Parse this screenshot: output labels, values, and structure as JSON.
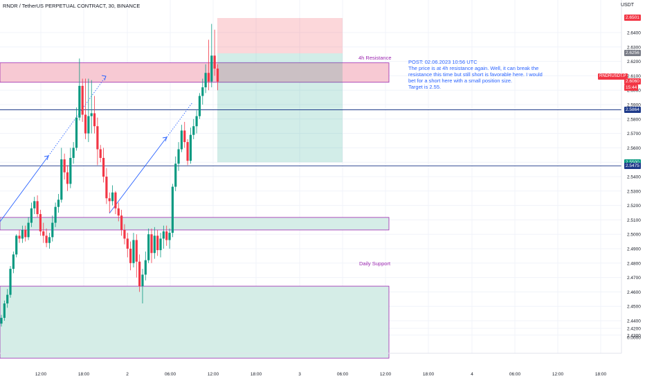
{
  "header": {
    "title": "RNDR / TetherUS PERPETUAL CONTRACT, 30, BINANCE",
    "currency": "USDT"
  },
  "note": {
    "text": "POST: 02.06.2023 10:56 UTC\nThe price is at 4h resistance again. Well, it can break the resistance this time but still short is favorable here. I would bet for a short here with a small position size.\nTarget is  2.55."
  },
  "labels": {
    "resistance": "4h Resistance",
    "support": "Daily Support",
    "symbol_tag": "RNDRUSDT.P"
  },
  "colors": {
    "up": "#089981",
    "down": "#f23645",
    "zone_border": "#9c27b0",
    "resistance_fill": "#f7c9d3",
    "zone_fill": "#d5ede7",
    "blue": "#2962ff"
  },
  "chart_data": {
    "type": "candlestick",
    "symbol": "RNDR / TetherUS PERPETUAL CONTRACT",
    "interval": "30",
    "exchange": "BINANCE",
    "y_ticks": [
      "2.6400",
      "2.6300",
      "2.6200",
      "2.6100",
      "2.6000",
      "2.5900",
      "2.5800",
      "2.5700",
      "2.5600",
      "2.5500",
      "2.5400",
      "2.5300",
      "2.5200",
      "2.5100",
      "2.5000",
      "2.4900",
      "2.4800",
      "2.4700",
      "2.4600",
      "2.4500",
      "2.4400",
      "2.4300",
      "2.4200",
      "0.0000"
    ],
    "x_ticks": [
      "12:00",
      "18:00",
      "2",
      "06:00",
      "12:00",
      "18:00",
      "3",
      "06:00",
      "12:00",
      "18:00",
      "4",
      "06:00",
      "12:00",
      "18:00"
    ],
    "price_tags": [
      {
        "label": "2.6501",
        "value": 2.6501,
        "color": "#f23645"
      },
      {
        "label": "2.6256",
        "value": 2.6256,
        "color": "#787b86"
      },
      {
        "label": "2.6060",
        "value": 2.606,
        "color": "#f23645"
      },
      {
        "label": "15:44",
        "value": 2.602,
        "color": "#f23645"
      },
      {
        "label": "2.5864",
        "value": 2.5864,
        "color": "#1e3a8a"
      },
      {
        "label": "2.5500",
        "value": 2.55,
        "color": "#089981"
      },
      {
        "label": "2.5475",
        "value": 2.5475,
        "color": "#1e3a8a"
      }
    ],
    "horizontal_lines": [
      2.5864,
      2.5475
    ],
    "zones": [
      {
        "name": "4h Resistance",
        "top": 2.619,
        "bottom": 2.6055
      },
      {
        "name": "range",
        "top": 2.5117,
        "bottom": 2.503
      },
      {
        "name": "Daily Support",
        "top": 2.464,
        "bottom": 2.414
      }
    ],
    "short_position": {
      "entry": 2.6256,
      "stop": 2.6501,
      "target": 2.55
    },
    "candles": [
      [
        2.438,
        2.442,
        2.436,
        2.444
      ],
      [
        2.442,
        2.452,
        2.44,
        2.454
      ],
      [
        2.452,
        2.458,
        2.449,
        2.462
      ],
      [
        2.458,
        2.476,
        2.456,
        2.478
      ],
      [
        2.476,
        2.486,
        2.473,
        2.488
      ],
      [
        2.486,
        2.499,
        2.484,
        2.5
      ],
      [
        2.499,
        2.497,
        2.494,
        2.503
      ],
      [
        2.497,
        2.503,
        2.494,
        2.506
      ],
      [
        2.503,
        2.498,
        2.495,
        2.506
      ],
      [
        2.498,
        2.508,
        2.496,
        2.512
      ],
      [
        2.508,
        2.518,
        2.505,
        2.522
      ],
      [
        2.518,
        2.523,
        2.514,
        2.526
      ],
      [
        2.523,
        2.514,
        2.512,
        2.527
      ],
      [
        2.514,
        2.502,
        2.499,
        2.517
      ],
      [
        2.502,
        2.499,
        2.494,
        2.508
      ],
      [
        2.499,
        2.494,
        2.491,
        2.504
      ],
      [
        2.494,
        2.498,
        2.49,
        2.501
      ],
      [
        2.498,
        2.508,
        2.495,
        2.513
      ],
      [
        2.508,
        2.519,
        2.505,
        2.522
      ],
      [
        2.519,
        2.524,
        2.515,
        2.528
      ],
      [
        2.524,
        2.552,
        2.522,
        2.56
      ],
      [
        2.552,
        2.543,
        2.538,
        2.556
      ],
      [
        2.543,
        2.535,
        2.53,
        2.548
      ],
      [
        2.535,
        2.553,
        2.532,
        2.56
      ],
      [
        2.553,
        2.56,
        2.549,
        2.564
      ],
      [
        2.56,
        2.581,
        2.558,
        2.588
      ],
      [
        2.581,
        2.603,
        2.579,
        2.622
      ],
      [
        2.603,
        2.583,
        2.578,
        2.608
      ],
      [
        2.583,
        2.57,
        2.566,
        2.608
      ],
      [
        2.57,
        2.582,
        2.564,
        2.608
      ],
      [
        2.582,
        2.584,
        2.57,
        2.607
      ],
      [
        2.584,
        2.575,
        2.57,
        2.596
      ],
      [
        2.575,
        2.559,
        2.548,
        2.581
      ],
      [
        2.559,
        2.553,
        2.55,
        2.562
      ],
      [
        2.553,
        2.54,
        2.536,
        2.56
      ],
      [
        2.54,
        2.525,
        2.521,
        2.546
      ],
      [
        2.525,
        2.523,
        2.515,
        2.529
      ],
      [
        2.523,
        2.529,
        2.52,
        2.534
      ],
      [
        2.529,
        2.518,
        2.514,
        2.53
      ],
      [
        2.518,
        2.513,
        2.509,
        2.522
      ],
      [
        2.513,
        2.503,
        2.499,
        2.517
      ],
      [
        2.503,
        2.497,
        2.493,
        2.507
      ],
      [
        2.497,
        2.49,
        2.484,
        2.501
      ],
      [
        2.49,
        2.48,
        2.475,
        2.495
      ],
      [
        2.48,
        2.496,
        2.477,
        2.501
      ],
      [
        2.496,
        2.481,
        2.47,
        2.5
      ],
      [
        2.481,
        2.464,
        2.46,
        2.486
      ],
      [
        2.464,
        2.472,
        2.452,
        2.476
      ],
      [
        2.472,
        2.482,
        2.468,
        2.488
      ],
      [
        2.482,
        2.5,
        2.48,
        2.504
      ],
      [
        2.5,
        2.487,
        2.48,
        2.504
      ],
      [
        2.487,
        2.499,
        2.483,
        2.505
      ],
      [
        2.499,
        2.489,
        2.485,
        2.503
      ],
      [
        2.489,
        2.497,
        2.484,
        2.501
      ],
      [
        2.497,
        2.502,
        2.49,
        2.506
      ],
      [
        2.502,
        2.496,
        2.492,
        2.506
      ],
      [
        2.496,
        2.501,
        2.49,
        2.504
      ],
      [
        2.501,
        2.533,
        2.498,
        2.535
      ],
      [
        2.533,
        2.549,
        2.53,
        2.554
      ],
      [
        2.549,
        2.559,
        2.544,
        2.564
      ],
      [
        2.559,
        2.572,
        2.557,
        2.576
      ],
      [
        2.572,
        2.564,
        2.56,
        2.578
      ],
      [
        2.564,
        2.551,
        2.548,
        2.566
      ],
      [
        2.551,
        2.569,
        2.549,
        2.574
      ],
      [
        2.569,
        2.575,
        2.566,
        2.58
      ],
      [
        2.575,
        2.582,
        2.57,
        2.586
      ],
      [
        2.582,
        2.596,
        2.58,
        2.598
      ],
      [
        2.596,
        2.602,
        2.59,
        2.608
      ],
      [
        2.602,
        2.612,
        2.598,
        2.618
      ],
      [
        2.612,
        2.606,
        2.6,
        2.635
      ],
      [
        2.606,
        2.624,
        2.602,
        2.646
      ],
      [
        2.624,
        2.615,
        2.61,
        2.642
      ],
      [
        2.615,
        2.606,
        2.6,
        2.618
      ]
    ]
  }
}
